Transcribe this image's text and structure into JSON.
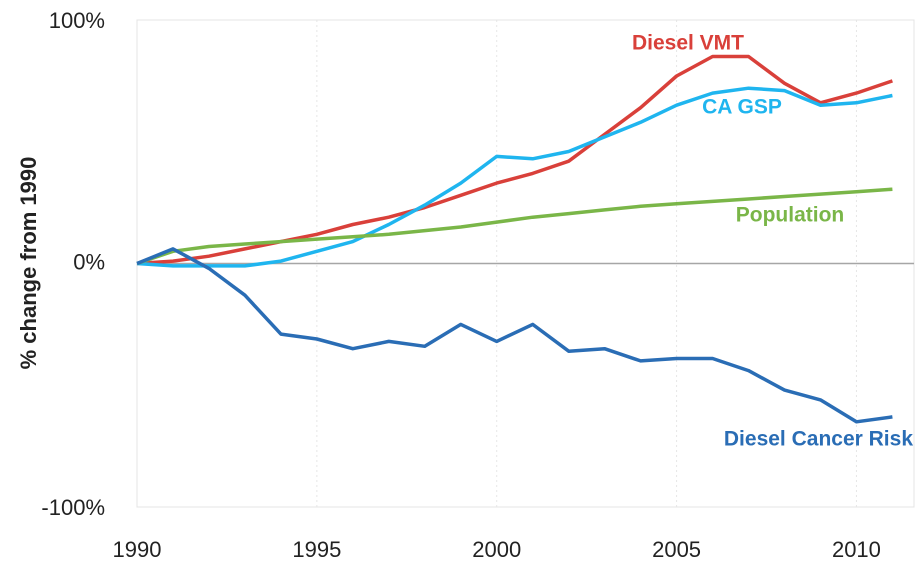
{
  "chart_data": {
    "type": "line",
    "y_label": "% change from 1990",
    "xlim": [
      1990,
      2011.6
    ],
    "xticks": [
      1990,
      1995,
      2000,
      2005,
      2010
    ],
    "ylim": [
      -100,
      100
    ],
    "yticks": [
      {
        "value": -100,
        "label": "-100%"
      },
      {
        "value": 0,
        "label": "0%"
      },
      {
        "value": 100,
        "label": "100%"
      }
    ],
    "grid": true,
    "x": [
      1990,
      1991,
      1992,
      1993,
      1994,
      1995,
      1996,
      1997,
      1998,
      1999,
      2000,
      2001,
      2002,
      2003,
      2004,
      2005,
      2006,
      2007,
      2008,
      2009,
      2010,
      2011
    ],
    "series": [
      {
        "name": "Diesel VMT",
        "color": "#d9403a",
        "values": [
          0,
          1,
          3,
          6,
          9,
          12,
          16,
          19,
          23,
          28,
          33,
          37,
          42,
          53,
          64,
          77,
          85,
          85,
          74,
          66,
          70,
          75
        ]
      },
      {
        "name": "CA GSP",
        "color": "#1fb5ef",
        "values": [
          0,
          -1,
          -1,
          -1,
          1,
          5,
          9,
          16,
          24,
          33,
          44,
          43,
          46,
          52,
          58,
          65,
          70,
          72,
          71,
          65,
          66,
          69
        ]
      },
      {
        "name": "Population",
        "color": "#7ab648",
        "values": [
          0,
          5,
          7,
          8,
          9,
          10,
          11,
          12,
          13.5,
          15,
          17,
          19,
          20.5,
          22,
          23.5,
          24.5,
          25.5,
          26.5,
          27.5,
          28.5,
          29.5,
          30.5
        ]
      },
      {
        "name": "Diesel Cancer Risk",
        "color": "#2a6db5",
        "values": [
          0,
          6,
          -2,
          -13,
          -29,
          -31,
          -35,
          -32,
          -34,
          -25,
          -32,
          -25,
          -36,
          -35,
          -40,
          -39,
          -39,
          -44,
          -52,
          -56,
          -65,
          -63
        ]
      }
    ]
  }
}
